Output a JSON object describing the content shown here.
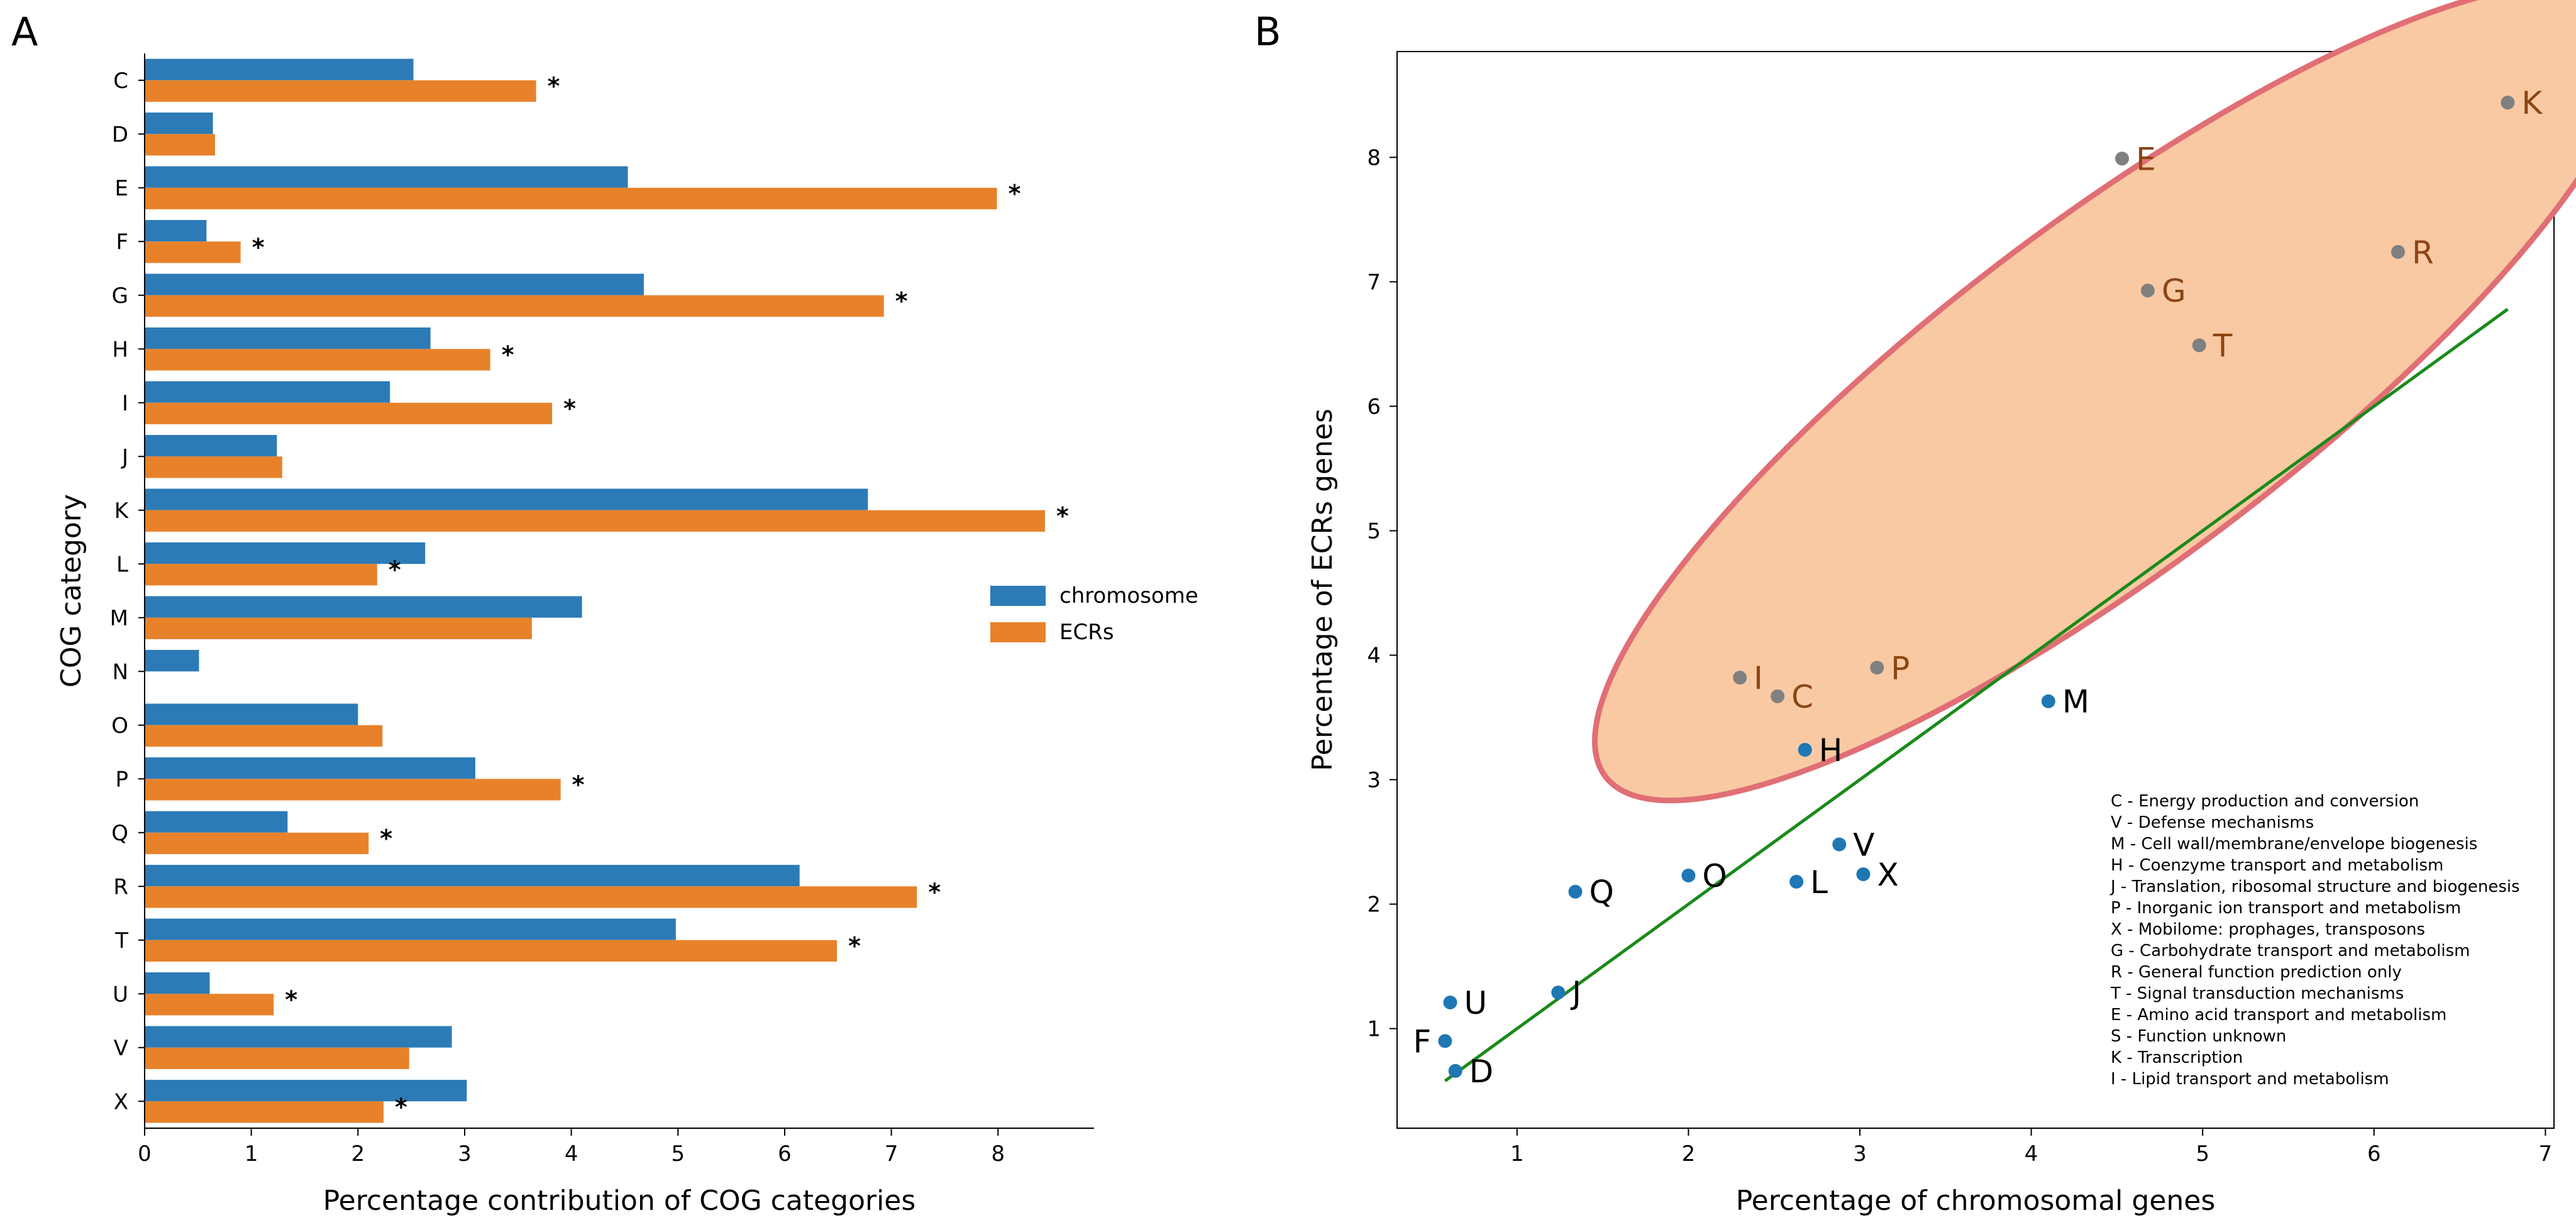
{
  "panel_labels": {
    "a": "A",
    "b": "B"
  },
  "chart_data": [
    {
      "type": "bar",
      "orientation": "horizontal",
      "xlabel": "Percentage contribution of COG categories",
      "ylabel": "COG category",
      "xlim": [
        0,
        8.9
      ],
      "xticks": [
        "0",
        "1",
        "2",
        "3",
        "4",
        "5",
        "6",
        "7",
        "8"
      ],
      "categories": [
        "C",
        "D",
        "E",
        "F",
        "G",
        "H",
        "I",
        "J",
        "K",
        "L",
        "M",
        "N",
        "O",
        "P",
        "Q",
        "R",
        "T",
        "U",
        "V",
        "X"
      ],
      "series": [
        {
          "name": "chromosome",
          "color": "#2c7bb6",
          "values": [
            2.52,
            0.64,
            4.53,
            0.58,
            4.68,
            2.68,
            2.3,
            1.24,
            6.78,
            2.63,
            4.1,
            0.51,
            2.0,
            3.1,
            1.34,
            6.14,
            4.98,
            0.61,
            2.88,
            3.02
          ]
        },
        {
          "name": "ECRs",
          "color": "#e8822a",
          "values": [
            3.67,
            0.66,
            7.99,
            0.9,
            6.93,
            3.24,
            3.82,
            1.29,
            8.44,
            2.18,
            3.63,
            0.0,
            2.23,
            3.9,
            2.1,
            7.24,
            6.49,
            1.21,
            2.48,
            2.24
          ]
        }
      ],
      "significant": [
        "C",
        "E",
        "F",
        "G",
        "H",
        "I",
        "K",
        "L",
        "P",
        "Q",
        "R",
        "T",
        "U",
        "X"
      ],
      "star_symbol": "*",
      "legend_position": "center-right"
    },
    {
      "type": "scatter",
      "xlabel": "Percentage of chromosomal genes",
      "ylabel": "Percentage of ECRs genes",
      "xlim": [
        0.3,
        7.05
      ],
      "ylim": [
        0.2,
        8.85
      ],
      "xticks": [
        "1",
        "2",
        "3",
        "4",
        "5",
        "6",
        "7"
      ],
      "yticks": [
        "1",
        "2",
        "3",
        "4",
        "5",
        "6",
        "7",
        "8"
      ],
      "points": [
        {
          "label": "K",
          "x": 6.78,
          "y": 8.44,
          "highlighted": true
        },
        {
          "label": "E",
          "x": 4.53,
          "y": 7.99,
          "highlighted": true
        },
        {
          "label": "R",
          "x": 6.14,
          "y": 7.24,
          "highlighted": true
        },
        {
          "label": "G",
          "x": 4.68,
          "y": 6.93,
          "highlighted": true
        },
        {
          "label": "T",
          "x": 4.98,
          "y": 6.49,
          "highlighted": true
        },
        {
          "label": "I",
          "x": 2.3,
          "y": 3.82,
          "highlighted": true
        },
        {
          "label": "C",
          "x": 2.52,
          "y": 3.67,
          "highlighted": true
        },
        {
          "label": "P",
          "x": 3.1,
          "y": 3.9,
          "highlighted": true
        },
        {
          "label": "M",
          "x": 4.1,
          "y": 3.63,
          "highlighted": false
        },
        {
          "label": "H",
          "x": 2.68,
          "y": 3.24,
          "highlighted": false
        },
        {
          "label": "V",
          "x": 2.88,
          "y": 2.48,
          "highlighted": false
        },
        {
          "label": "X",
          "x": 3.02,
          "y": 2.24,
          "highlighted": false
        },
        {
          "label": "O",
          "x": 2.0,
          "y": 2.23,
          "highlighted": false
        },
        {
          "label": "L",
          "x": 2.63,
          "y": 2.18,
          "highlighted": false
        },
        {
          "label": "Q",
          "x": 1.34,
          "y": 2.1,
          "highlighted": false
        },
        {
          "label": "J",
          "x": 1.24,
          "y": 1.29,
          "highlighted": false
        },
        {
          "label": "U",
          "x": 0.61,
          "y": 1.21,
          "highlighted": false
        },
        {
          "label": "F",
          "x": 0.58,
          "y": 0.9,
          "highlighted": false
        },
        {
          "label": "D",
          "x": 0.64,
          "y": 0.66,
          "highlighted": false
        }
      ],
      "trend_line": {
        "x": [
          0.58,
          6.78
        ],
        "y": [
          0.58,
          6.78
        ],
        "color": "#1a8a1a"
      },
      "highlight_region": {
        "fill": "#f9c9a3",
        "stroke": "#e06f75",
        "members": [
          "K",
          "E",
          "R",
          "G",
          "T",
          "I",
          "C",
          "P"
        ]
      },
      "colors": {
        "normal_point": "#1f77b4",
        "highlight_point": "#808080",
        "highlight_label": "#8b4513"
      },
      "cog_legend": [
        "C - Energy production and conversion",
        "V - Defense mechanisms",
        "M - Cell wall/membrane/envelope biogenesis",
        "H - Coenzyme transport and metabolism",
        "J - Translation, ribosomal structure and biogenesis",
        "P - Inorganic ion transport and metabolism",
        "X - Mobilome: prophages, transposons",
        "G - Carbohydrate transport and metabolism",
        "R - General function prediction only",
        "T - Signal transduction mechanisms",
        "E - Amino acid transport and metabolism",
        "S - Function unknown",
        "K - Transcription",
        "I - Lipid transport and metabolism"
      ]
    }
  ]
}
